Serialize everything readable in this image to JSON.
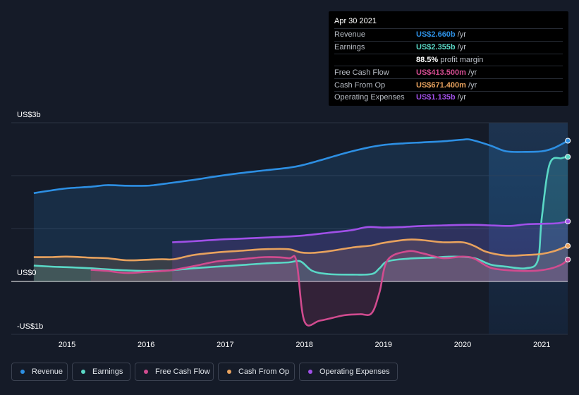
{
  "chart_data": {
    "type": "area",
    "ylim": [
      -1,
      3
    ],
    "y_tick_labels": [
      {
        "value": 3,
        "label": "US$3b"
      },
      {
        "value": 0,
        "label": "US$0"
      },
      {
        "value": -1,
        "label": "-US$1b"
      }
    ],
    "x_tick_labels": [
      "2015",
      "2016",
      "2017",
      "2018",
      "2019",
      "2020",
      "2021"
    ],
    "x_range": [
      2014.55,
      2021.33
    ],
    "forecast_start": 2020.33,
    "series": [
      {
        "name": "Revenue",
        "color": "#2d8fe3",
        "x": [
          2014.58,
          2014.8,
          2015.0,
          2015.3,
          2015.5,
          2015.75,
          2016.0,
          2016.1,
          2016.3,
          2016.6,
          2016.9,
          2017.2,
          2017.5,
          2017.8,
          2017.95,
          2018.2,
          2018.5,
          2018.8,
          2019.0,
          2019.25,
          2019.5,
          2019.75,
          2020.0,
          2020.1,
          2020.35,
          2020.55,
          2020.8,
          2021.0,
          2021.15,
          2021.33
        ],
        "values": [
          1.67,
          1.72,
          1.76,
          1.79,
          1.82,
          1.81,
          1.81,
          1.82,
          1.86,
          1.92,
          1.99,
          2.05,
          2.1,
          2.15,
          2.19,
          2.29,
          2.42,
          2.53,
          2.58,
          2.61,
          2.63,
          2.65,
          2.68,
          2.68,
          2.57,
          2.46,
          2.45,
          2.46,
          2.52,
          2.66
        ]
      },
      {
        "name": "Earnings",
        "color": "#5ad8c6",
        "x": [
          2014.58,
          2014.8,
          2015.0,
          2015.3,
          2015.5,
          2015.75,
          2016.0,
          2016.3,
          2016.6,
          2016.9,
          2017.2,
          2017.5,
          2017.8,
          2017.95,
          2018.1,
          2018.3,
          2018.6,
          2018.85,
          2018.95,
          2019.05,
          2019.3,
          2019.6,
          2019.9,
          2020.15,
          2020.35,
          2020.55,
          2020.8,
          2020.95,
          2021.0,
          2021.1,
          2021.25,
          2021.33
        ],
        "values": [
          0.3,
          0.28,
          0.27,
          0.25,
          0.23,
          0.21,
          0.2,
          0.21,
          0.25,
          0.28,
          0.31,
          0.34,
          0.36,
          0.38,
          0.2,
          0.14,
          0.13,
          0.14,
          0.25,
          0.38,
          0.43,
          0.45,
          0.47,
          0.44,
          0.32,
          0.28,
          0.25,
          0.4,
          1.2,
          2.22,
          2.33,
          2.355
        ]
      },
      {
        "name": "Free Cash Flow",
        "color": "#d14b8f",
        "x": [
          2015.3,
          2015.5,
          2015.75,
          2016.0,
          2016.3,
          2016.6,
          2016.9,
          2017.2,
          2017.5,
          2017.8,
          2017.9,
          2018.0,
          2018.2,
          2018.5,
          2018.7,
          2018.85,
          2018.95,
          2019.05,
          2019.3,
          2019.5,
          2019.75,
          2020.0,
          2020.15,
          2020.35,
          2020.6,
          2020.9,
          2021.1,
          2021.25,
          2021.33
        ],
        "values": [
          0.22,
          0.2,
          0.16,
          0.18,
          0.21,
          0.29,
          0.38,
          0.42,
          0.46,
          0.44,
          0.38,
          -0.75,
          -0.74,
          -0.64,
          -0.62,
          -0.6,
          -0.2,
          0.4,
          0.57,
          0.53,
          0.44,
          0.47,
          0.43,
          0.26,
          0.21,
          0.2,
          0.24,
          0.32,
          0.4135
        ]
      },
      {
        "name": "Cash From Op",
        "color": "#e8a25e",
        "x": [
          2014.58,
          2014.8,
          2015.0,
          2015.3,
          2015.5,
          2015.75,
          2016.0,
          2016.2,
          2016.35,
          2016.6,
          2016.9,
          2017.2,
          2017.5,
          2017.8,
          2017.95,
          2018.1,
          2018.3,
          2018.6,
          2018.85,
          2019.0,
          2019.3,
          2019.5,
          2019.75,
          2020.0,
          2020.15,
          2020.3,
          2020.55,
          2020.8,
          2021.0,
          2021.15,
          2021.33
        ],
        "values": [
          0.46,
          0.46,
          0.47,
          0.45,
          0.44,
          0.4,
          0.41,
          0.42,
          0.42,
          0.5,
          0.55,
          0.58,
          0.61,
          0.61,
          0.55,
          0.54,
          0.57,
          0.64,
          0.68,
          0.73,
          0.79,
          0.78,
          0.74,
          0.74,
          0.67,
          0.56,
          0.49,
          0.5,
          0.52,
          0.57,
          0.6714
        ]
      },
      {
        "name": "Operating Expenses",
        "color": "#a050e8",
        "x": [
          2016.33,
          2016.6,
          2016.9,
          2017.2,
          2017.5,
          2017.8,
          2018.0,
          2018.3,
          2018.6,
          2018.8,
          2019.0,
          2019.25,
          2019.5,
          2019.75,
          2020.0,
          2020.2,
          2020.35,
          2020.6,
          2020.8,
          2021.0,
          2021.2,
          2021.33
        ],
        "values": [
          0.74,
          0.76,
          0.79,
          0.81,
          0.83,
          0.85,
          0.87,
          0.92,
          0.97,
          1.03,
          1.02,
          1.03,
          1.05,
          1.06,
          1.07,
          1.07,
          1.06,
          1.05,
          1.08,
          1.09,
          1.1,
          1.135
        ]
      }
    ]
  },
  "tooltip": {
    "date": "Apr 30 2021",
    "rows": [
      {
        "label": "Revenue",
        "value": "US$2.660b",
        "unit": " /yr",
        "color": "#2d8fe3"
      },
      {
        "label": "Earnings",
        "value": "US$2.355b",
        "unit": " /yr",
        "color": "#5ad8c6"
      },
      {
        "label": "",
        "value": "88.5%",
        "unit": " profit margin",
        "color": "#ffffff"
      },
      {
        "label": "Free Cash Flow",
        "value": "US$413.500m",
        "unit": " /yr",
        "color": "#d14b8f"
      },
      {
        "label": "Cash From Op",
        "value": "US$671.400m",
        "unit": " /yr",
        "color": "#e8a25e"
      },
      {
        "label": "Operating Expenses",
        "value": "US$1.135b",
        "unit": " /yr",
        "color": "#a050e8"
      }
    ]
  },
  "legend": [
    {
      "label": "Revenue",
      "color": "#2d8fe3"
    },
    {
      "label": "Earnings",
      "color": "#5ad8c6"
    },
    {
      "label": "Free Cash Flow",
      "color": "#d14b8f"
    },
    {
      "label": "Cash From Op",
      "color": "#e8a25e"
    },
    {
      "label": "Operating Expenses",
      "color": "#a050e8"
    }
  ]
}
